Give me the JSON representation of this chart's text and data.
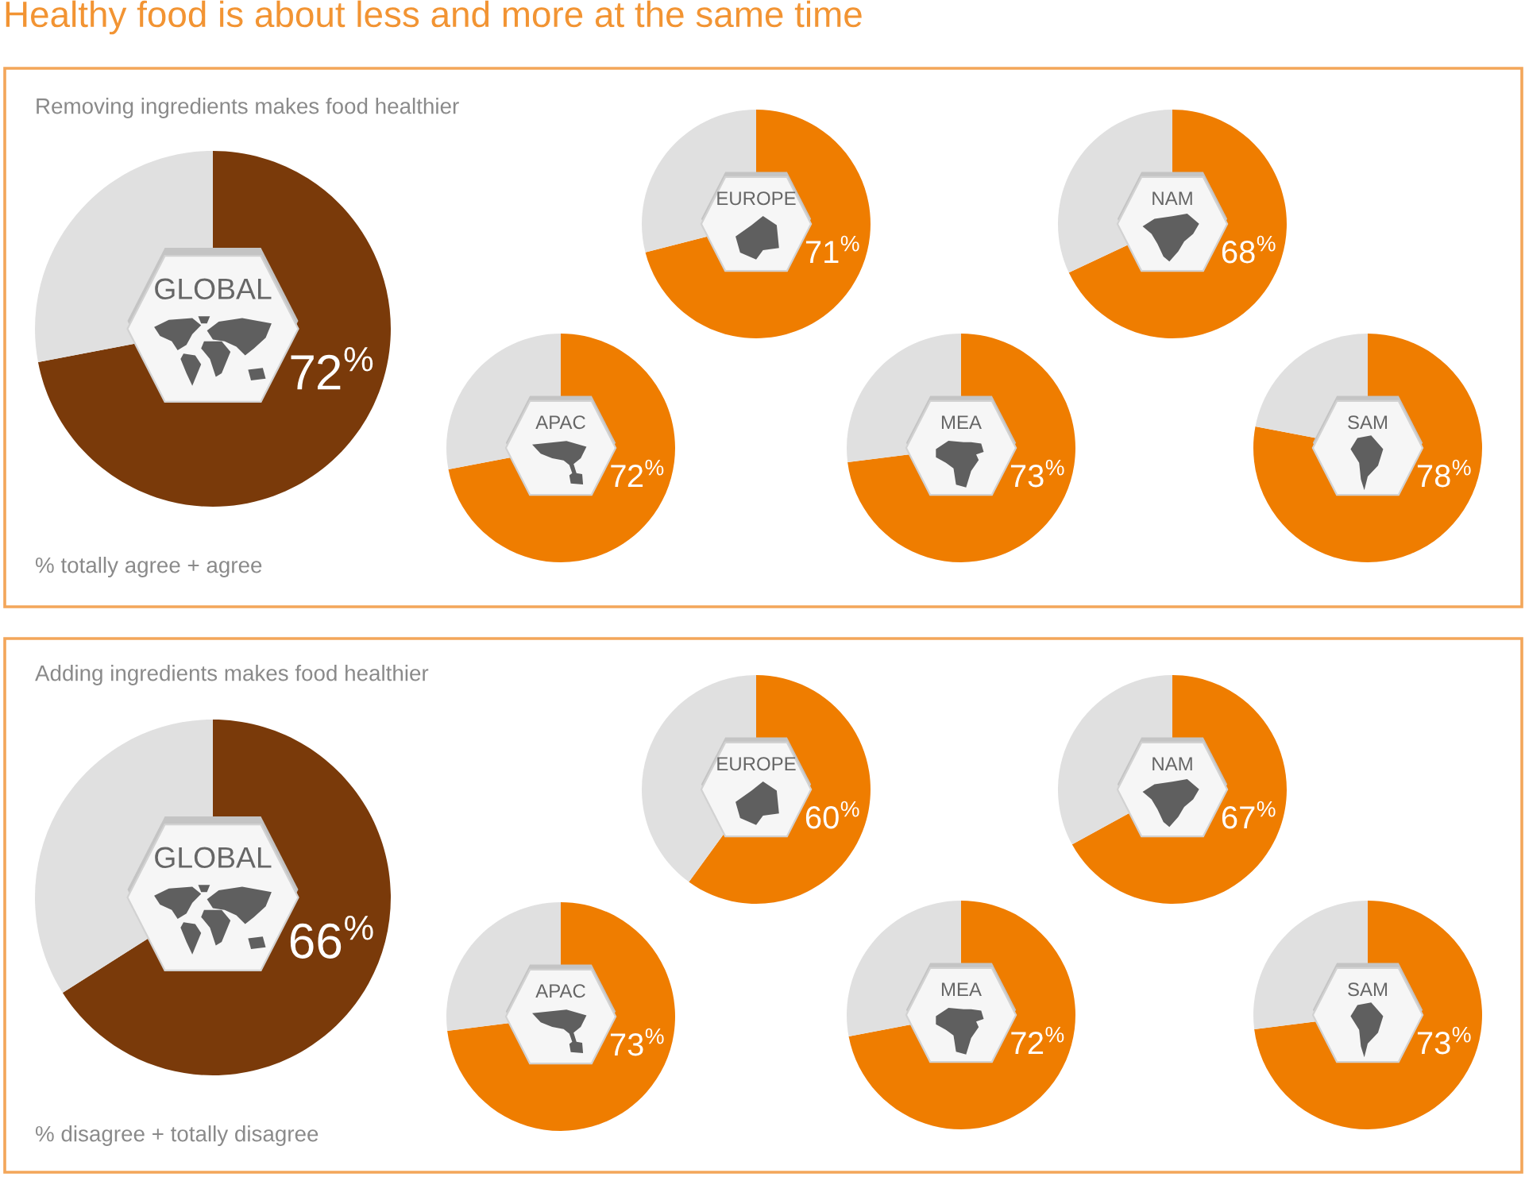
{
  "chart_data": [
    {
      "type": "other",
      "title": "Healthy food is about less and more at the same time"
    },
    {
      "type": "pie",
      "title": "GLOBAL",
      "subtitle": "Removing ingredients makes food healthier",
      "categories": [
        null,
        null
      ],
      "values": [
        72,
        28
      ],
      "colors": [
        "#7a3a0a",
        "#e0e0e0"
      ],
      "value_labels": [
        "72$^{%}$",
        null
      ],
      "annotations": [
        "% totally agree + agree"
      ]
    },
    {
      "type": "pie",
      "title": "EUROPE",
      "categories": [
        null,
        null
      ],
      "values": [
        71,
        29
      ],
      "colors": [
        "#ef7d00",
        "#e0e0e0"
      ],
      "value_labels": [
        "71$^{%}$",
        null
      ]
    },
    {
      "type": "pie",
      "title": "NAM",
      "categories": [
        null,
        null
      ],
      "values": [
        68,
        32
      ],
      "colors": [
        "#ef7d00",
        "#e0e0e0"
      ],
      "value_labels": [
        "68$^{%}$",
        null
      ]
    },
    {
      "type": "pie",
      "title": "APAC",
      "categories": [
        null,
        null
      ],
      "values": [
        72,
        28
      ],
      "colors": [
        "#ef7d00",
        "#e0e0e0"
      ],
      "value_labels": [
        "72$^{%}$",
        null
      ]
    },
    {
      "type": "pie",
      "title": "MEA",
      "categories": [
        null,
        null
      ],
      "values": [
        73,
        27
      ],
      "colors": [
        "#ef7d00",
        "#e0e0e0"
      ],
      "value_labels": [
        "73$^{%}$",
        null
      ]
    },
    {
      "type": "pie",
      "title": "SAM",
      "categories": [
        null,
        null
      ],
      "values": [
        78,
        22
      ],
      "colors": [
        "#ef7d00",
        "#e0e0e0"
      ],
      "value_labels": [
        "78$^{%}$",
        null
      ]
    },
    {
      "type": "pie",
      "title": "GLOBAL",
      "subtitle": "Adding ingredients makes food healthier",
      "categories": [
        null,
        null
      ],
      "values": [
        66,
        34
      ],
      "colors": [
        "#7a3a0a",
        "#e0e0e0"
      ],
      "value_labels": [
        "66$^{%}$",
        null
      ],
      "annotations": [
        "% disagree + totally disagree"
      ]
    },
    {
      "type": "pie",
      "title": "EUROPE",
      "categories": [
        null,
        null
      ],
      "values": [
        60,
        40
      ],
      "colors": [
        "#ef7d00",
        "#e0e0e0"
      ],
      "value_labels": [
        "60$^{%}$",
        null
      ]
    },
    {
      "type": "pie",
      "title": "NAM",
      "categories": [
        null,
        null
      ],
      "values": [
        67,
        33
      ],
      "colors": [
        "#ef7d00",
        "#e0e0e0"
      ],
      "value_labels": [
        "67$^{%}$",
        null
      ]
    },
    {
      "type": "pie",
      "title": "APAC",
      "categories": [
        null,
        null
      ],
      "values": [
        73,
        27
      ],
      "colors": [
        "#ef7d00",
        "#e0e0e0"
      ],
      "value_labels": [
        "73$^{%}$",
        null
      ]
    },
    {
      "type": "pie",
      "title": "MEA",
      "categories": [
        null,
        null
      ],
      "values": [
        72,
        28
      ],
      "colors": [
        "#ef7d00",
        "#e0e0e0"
      ],
      "value_labels": [
        "72$^{%}$",
        null
      ]
    },
    {
      "type": "pie",
      "title": "SAM",
      "categories": [
        null,
        null
      ],
      "values": [
        73,
        27
      ],
      "colors": [
        "#ef7d00",
        "#e0e0e0"
      ],
      "value_labels": [
        "73$^{%}$",
        null
      ]
    }
  ]
}
